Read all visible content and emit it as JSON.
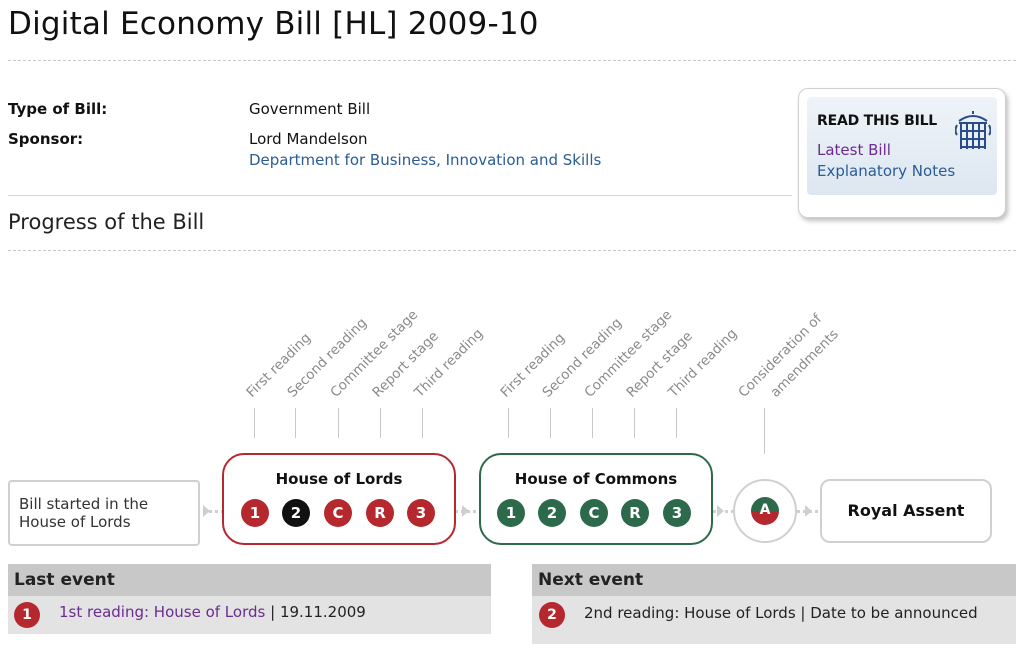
{
  "header": {
    "title": "Digital Economy Bill [HL] 2009-10"
  },
  "details": {
    "type_label": "Type of Bill:",
    "type_value": "Government Bill",
    "sponsor_label": "Sponsor:",
    "sponsor_name": "Lord Mandelson",
    "sponsor_department": "Department for Business, Innovation and Skills"
  },
  "read_box": {
    "title": "READ THIS BILL",
    "links": [
      "Latest Bill",
      "Explanatory Notes"
    ],
    "icon": "portcullis-icon"
  },
  "progress": {
    "heading": "Progress of the Bill",
    "started": "Bill started in the House of Lords",
    "lords": {
      "title": "House of Lords",
      "stages": [
        "First reading",
        "Second reading",
        "Committee stage",
        "Report stage",
        "Third reading"
      ],
      "markers": [
        "1",
        "2",
        "C",
        "R",
        "3"
      ]
    },
    "commons": {
      "title": "House of Commons",
      "stages": [
        "First reading",
        "Second reading",
        "Committee stage",
        "Report stage",
        "Third reading"
      ],
      "markers": [
        "1",
        "2",
        "C",
        "R",
        "3"
      ]
    },
    "amendments": {
      "label_line1": "Consideration of",
      "label_line2": "amendments",
      "marker": "A"
    },
    "royal_assent": "Royal Assent"
  },
  "events": {
    "last": {
      "heading": "Last event",
      "marker": "1",
      "link": "1st reading: House of Lords",
      "sep": "|",
      "date": "19.11.2009"
    },
    "next": {
      "heading": "Next event",
      "marker": "2",
      "text": "2nd reading: House of Lords | Date to be announced"
    }
  },
  "colors": {
    "lords": "#b5282e",
    "commons": "#2d6a4b",
    "current": "#111111",
    "link": "#2a5c96",
    "visited": "#6a2c8f"
  }
}
